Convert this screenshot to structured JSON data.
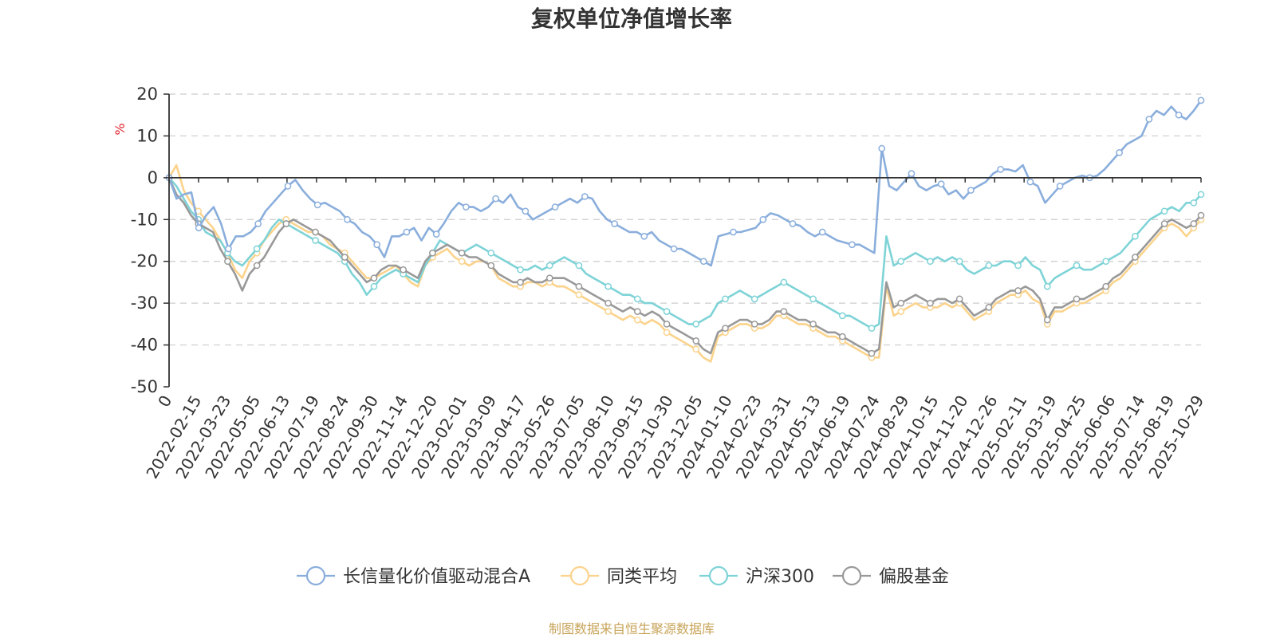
{
  "colors": {
    "fund": "#8aaedc",
    "peer": "#fbd38c",
    "hs300": "#7ed3d7",
    "stock_fund": "#999999",
    "axis": "#333333",
    "grid": "#cccccc",
    "unit": "#e0242e",
    "source": "#c8a45a"
  },
  "source_note": "制图数据来自恒生聚源数据库",
  "chart_data": {
    "type": "line",
    "title": "复权单位净值增长率",
    "ylabel": "%",
    "xlabel": "",
    "ylim": [
      -50,
      20
    ],
    "yticks": [
      "20",
      "10",
      "0",
      "-10",
      "-20",
      "-30",
      "-40",
      "-50"
    ],
    "grid": true,
    "legend_position": "bottom",
    "x_tick_labels": [
      "0",
      "2022-02-15",
      "2022-03-23",
      "2022-05-05",
      "2022-06-13",
      "2022-07-19",
      "2022-08-24",
      "2022-09-30",
      "2022-11-14",
      "2022-12-20",
      "2023-02-01",
      "2023-03-09",
      "2023-04-17",
      "2023-05-26",
      "2023-07-05",
      "2023-08-10",
      "2023-09-15",
      "2023-10-30",
      "2023-12-05",
      "2024-01-10",
      "2024-02-23",
      "2024-03-31",
      "2024-05-13",
      "2024-06-19",
      "2024-07-24",
      "2024-08-29",
      "2024-10-15",
      "2024-11-20",
      "2024-12-26",
      "2025-02-11",
      "2025-03-19",
      "2025-04-25",
      "2025-06-06",
      "2025-07-14",
      "2025-08-19",
      "2025-10-29"
    ],
    "series": [
      {
        "name": "长信量化价值驱动混合A",
        "color_key": "fund",
        "values": [
          0,
          -5,
          -4,
          -3.5,
          -12,
          -9,
          -7,
          -11,
          -17,
          -14,
          -14,
          -13,
          -11,
          -8,
          -6,
          -4,
          -2,
          -0.5,
          -3,
          -5,
          -6.5,
          -6,
          -7,
          -8,
          -10,
          -11,
          -13,
          -14,
          -16,
          -19,
          -14,
          -14,
          -13,
          -12,
          -15,
          -12,
          -13.5,
          -11,
          -8,
          -6,
          -7,
          -7,
          -8,
          -7,
          -5,
          -6,
          -4,
          -7,
          -8,
          -10,
          -9,
          -8,
          -7,
          -6,
          -5,
          -6,
          -4.5,
          -5,
          -8,
          -10,
          -11,
          -12,
          -13,
          -13,
          -14,
          -13,
          -15,
          -16,
          -17,
          -17,
          -18,
          -19,
          -20,
          -21,
          -14,
          -13.5,
          -13,
          -13,
          -12.5,
          -12,
          -10,
          -8.5,
          -9,
          -10,
          -11,
          -11.5,
          -13,
          -14,
          -13,
          -14,
          -15,
          -15.5,
          -16,
          -16,
          -17,
          -18,
          7,
          -2,
          -3,
          -1,
          1,
          -2,
          -3,
          -2,
          -1.5,
          -4,
          -3,
          -5,
          -3,
          -2,
          -1,
          1,
          2,
          2,
          1.5,
          3,
          -1,
          -2,
          -6,
          -4,
          -2,
          -1,
          0,
          0.5,
          0,
          0.5,
          2,
          4,
          6,
          8,
          9,
          10,
          14,
          16,
          15,
          17,
          15,
          14,
          16,
          18.5
        ]
      },
      {
        "name": "同类平均",
        "color_key": "peer",
        "values": [
          0,
          3,
          -3,
          -6,
          -8,
          -10,
          -12,
          -15,
          -18,
          -22,
          -24,
          -20,
          -18,
          -15,
          -13,
          -11,
          -10,
          -11,
          -12,
          -13,
          -13,
          -14,
          -16,
          -17,
          -18,
          -20,
          -22,
          -24,
          -24,
          -23,
          -22,
          -21,
          -23,
          -25,
          -26,
          -21,
          -19,
          -18,
          -17,
          -19,
          -20,
          -21,
          -20,
          -20,
          -21,
          -24,
          -25,
          -26,
          -26,
          -25,
          -25,
          -26,
          -25,
          -26,
          -26,
          -27,
          -28,
          -29,
          -30,
          -31,
          -32,
          -33,
          -34,
          -33,
          -34,
          -35,
          -34,
          -35,
          -37,
          -38,
          -39,
          -40,
          -41,
          -43,
          -44,
          -38,
          -37,
          -36,
          -35,
          -35,
          -36,
          -36,
          -35,
          -33,
          -33,
          -34,
          -35,
          -35,
          -36,
          -37,
          -38,
          -38,
          -39,
          -40,
          -41,
          -42,
          -43,
          -43,
          -26,
          -33,
          -32,
          -31,
          -30,
          -31,
          -31,
          -31,
          -30,
          -31,
          -30,
          -32,
          -34,
          -33,
          -32,
          -30,
          -29,
          -28,
          -28,
          -27,
          -29,
          -30,
          -35,
          -32,
          -32,
          -31,
          -30,
          -30,
          -29,
          -28,
          -27,
          -25,
          -24,
          -22,
          -20,
          -18,
          -16,
          -14,
          -12,
          -11,
          -12,
          -14,
          -12,
          -10
        ]
      },
      {
        "name": "沪深300",
        "color_key": "hs300",
        "values": [
          0,
          -2,
          -5,
          -8,
          -10,
          -13,
          -14,
          -15,
          -18,
          -20,
          -21,
          -19,
          -17,
          -15,
          -12,
          -10,
          -11,
          -12,
          -13,
          -14,
          -15,
          -16,
          -17,
          -18,
          -20,
          -23,
          -25,
          -28,
          -26,
          -24,
          -23,
          -22,
          -23,
          -24,
          -25,
          -21,
          -18,
          -15,
          -16,
          -17,
          -18,
          -17,
          -16,
          -17,
          -18,
          -19,
          -20,
          -21,
          -22,
          -22,
          -21,
          -22,
          -21,
          -20,
          -19,
          -20,
          -21,
          -23,
          -24,
          -25,
          -26,
          -27,
          -28,
          -28,
          -29,
          -30,
          -30,
          -31,
          -32,
          -33,
          -34,
          -35,
          -35,
          -34,
          -33,
          -30,
          -29,
          -28,
          -27,
          -28,
          -29,
          -28,
          -27,
          -26,
          -25,
          -26,
          -27,
          -28,
          -29,
          -30,
          -31,
          -32,
          -33,
          -33,
          -34,
          -35,
          -36,
          -35,
          -14,
          -21,
          -20,
          -19,
          -18,
          -19,
          -20,
          -19,
          -20,
          -19,
          -20,
          -22,
          -23,
          -22,
          -21,
          -21,
          -20,
          -20,
          -21,
          -19,
          -21,
          -22,
          -26,
          -24,
          -23,
          -22,
          -21,
          -22,
          -22,
          -21,
          -20,
          -19,
          -18,
          -16,
          -14,
          -12,
          -10,
          -9,
          -8,
          -7,
          -8,
          -6,
          -6,
          -4
        ]
      },
      {
        "name": "偏股基金",
        "color_key": "stock_fund",
        "values": [
          0,
          -4,
          -6,
          -9,
          -11,
          -12,
          -13,
          -17,
          -20,
          -23,
          -27,
          -23,
          -21,
          -19,
          -16,
          -13,
          -11,
          -10,
          -11,
          -12,
          -13,
          -14,
          -15,
          -17,
          -19,
          -21,
          -23,
          -25,
          -24,
          -22,
          -21,
          -21,
          -22,
          -23,
          -24,
          -20,
          -18,
          -17,
          -16,
          -17,
          -18,
          -19,
          -19,
          -20,
          -21,
          -23,
          -24,
          -25,
          -25,
          -24,
          -25,
          -25,
          -24,
          -24,
          -24,
          -25,
          -26,
          -27,
          -28,
          -29,
          -30,
          -31,
          -32,
          -31,
          -32,
          -33,
          -32,
          -33,
          -35,
          -36,
          -37,
          -38,
          -39,
          -41,
          -42,
          -37,
          -36,
          -35,
          -34,
          -34,
          -35,
          -35,
          -34,
          -32,
          -32,
          -33,
          -34,
          -34,
          -35,
          -36,
          -37,
          -37,
          -38,
          -39,
          -40,
          -41,
          -42,
          -41,
          -25,
          -31,
          -30,
          -29,
          -28,
          -29,
          -30,
          -29,
          -29,
          -30,
          -29,
          -31,
          -33,
          -32,
          -31,
          -29,
          -28,
          -27,
          -27,
          -26,
          -27,
          -29,
          -34,
          -31,
          -31,
          -30,
          -29,
          -29,
          -28,
          -27,
          -26,
          -24,
          -23,
          -21,
          -19,
          -17,
          -15,
          -13,
          -11,
          -10,
          -11,
          -12,
          -11,
          -9
        ]
      }
    ]
  }
}
